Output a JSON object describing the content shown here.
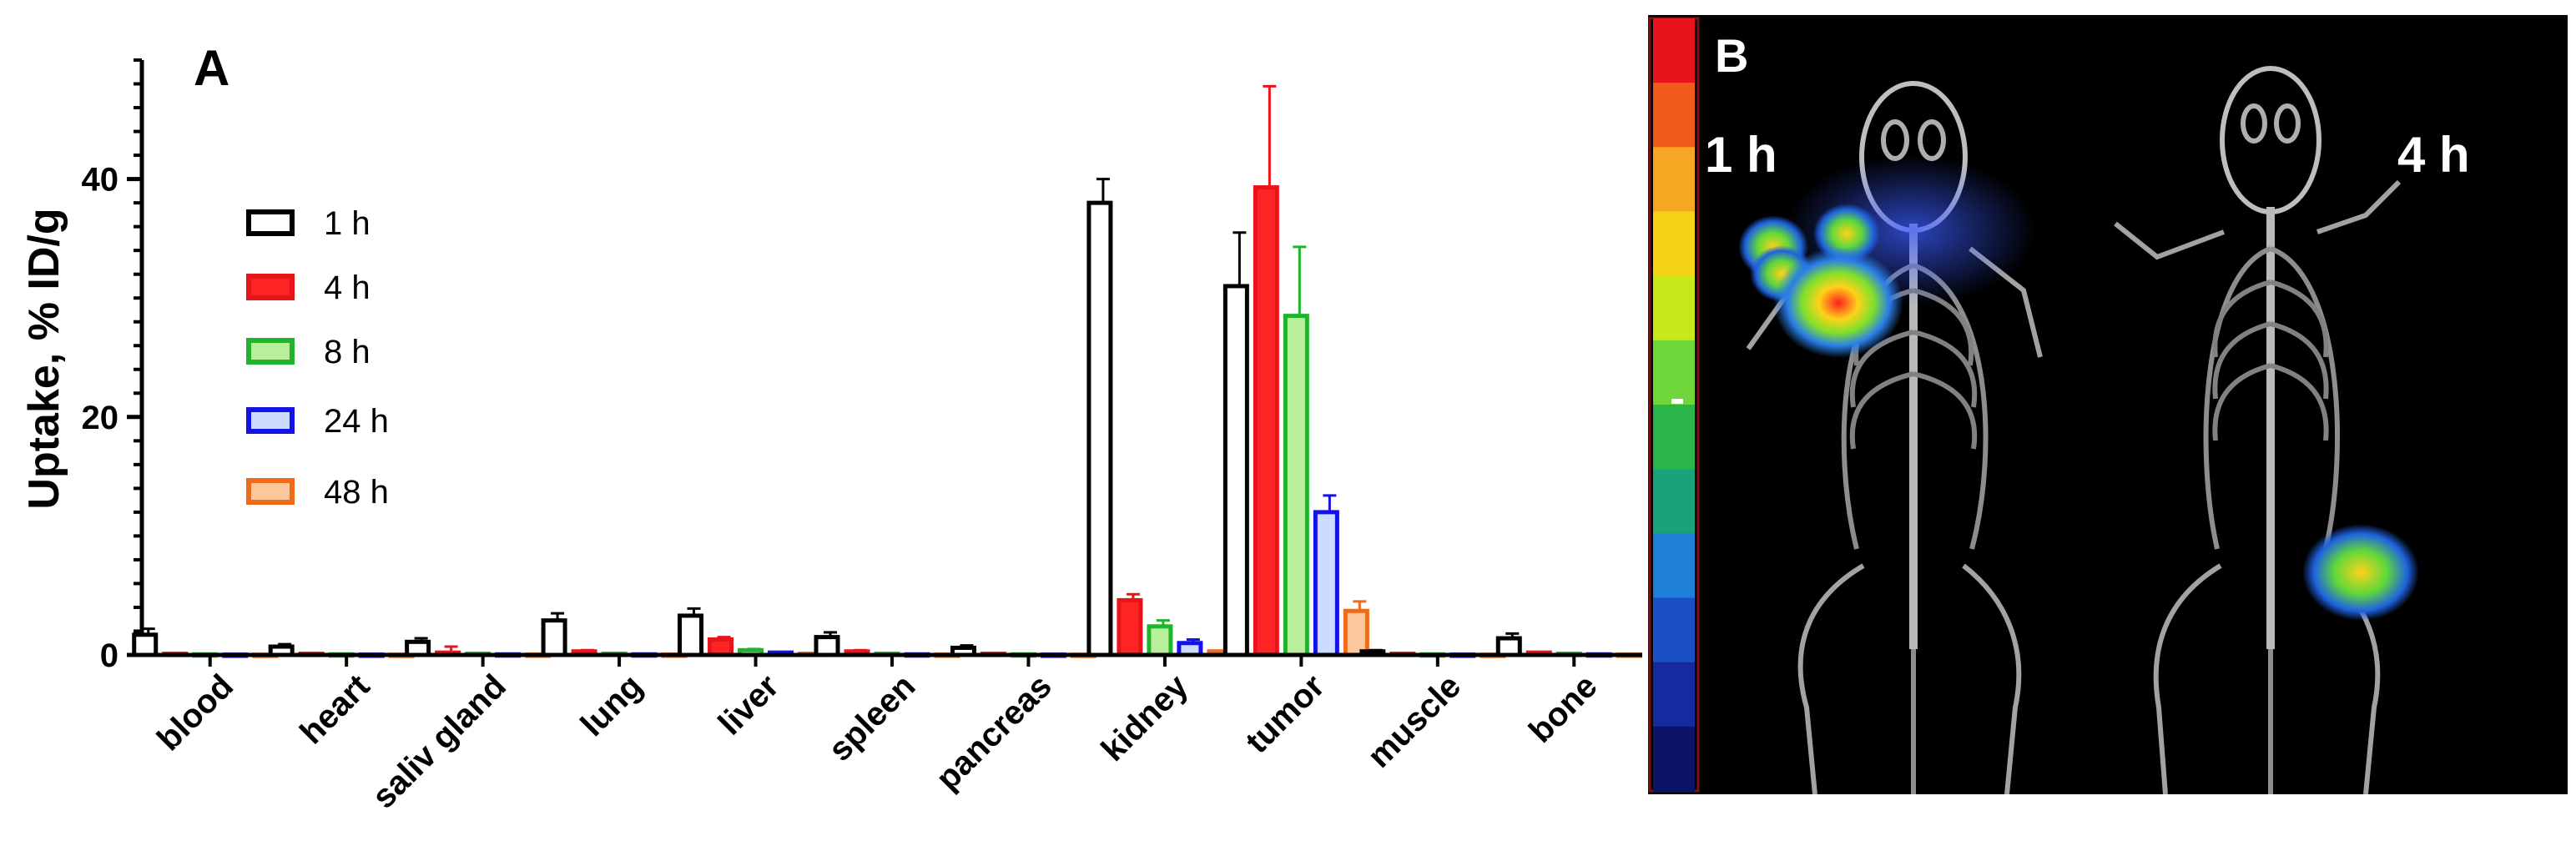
{
  "chart_data": {
    "type": "bar",
    "panel_label": "A",
    "ylabel": "Uptake, % ID/g",
    "ylim": [
      0,
      50
    ],
    "yticks": [
      0,
      20,
      40
    ],
    "categories": [
      "blood",
      "heart",
      "saliv gland",
      "lung",
      "liver",
      "spleen",
      "pancreas",
      "kidney",
      "tumor",
      "muscle",
      "bone"
    ],
    "series": [
      {
        "name": "1 h",
        "edge": "#000000",
        "fill": "#ffffff",
        "values": [
          1.7,
          0.7,
          1.1,
          2.9,
          3.3,
          1.5,
          0.6,
          38.0,
          31.0,
          0.3,
          1.4
        ],
        "errors": [
          0.5,
          0.2,
          0.3,
          0.6,
          0.6,
          0.4,
          0.2,
          2.0,
          4.5,
          0.1,
          0.4
        ]
      },
      {
        "name": "4 h",
        "edge": "#e8141b",
        "fill": "#ff2424",
        "values": [
          0.1,
          0.1,
          0.2,
          0.3,
          1.3,
          0.3,
          0.1,
          4.6,
          39.3,
          0.1,
          0.2
        ],
        "errors": [
          0.05,
          0.05,
          0.5,
          0.1,
          0.2,
          0.1,
          0.05,
          0.5,
          8.5,
          0.05,
          0.05
        ]
      },
      {
        "name": "8 h",
        "edge": "#22b32d",
        "fill": "#b9ef9b",
        "values": [
          0.05,
          0.05,
          0.1,
          0.1,
          0.4,
          0.1,
          0.05,
          2.4,
          28.5,
          0.05,
          0.1
        ],
        "errors": [
          0.02,
          0.02,
          0.05,
          0.05,
          0.1,
          0.05,
          0.02,
          0.5,
          5.8,
          0.02,
          0.05
        ]
      },
      {
        "name": "24 h",
        "edge": "#1313e8",
        "fill": "#ccdcff",
        "values": [
          0.03,
          0.03,
          0.05,
          0.05,
          0.2,
          0.05,
          0.03,
          1.0,
          12.0,
          0.03,
          0.05
        ],
        "errors": [
          0.01,
          0.01,
          0.02,
          0.02,
          0.05,
          0.02,
          0.01,
          0.3,
          1.4,
          0.01,
          0.02
        ]
      },
      {
        "name": "48 h",
        "edge": "#ef6b1c",
        "fill": "#fcc79a",
        "values": [
          0.02,
          0.02,
          0.03,
          0.03,
          0.1,
          0.03,
          0.02,
          0.3,
          3.7,
          0.02,
          0.03
        ],
        "errors": [
          0.01,
          0.01,
          0.01,
          0.01,
          0.02,
          0.01,
          0.01,
          0.05,
          0.8,
          0.01,
          0.01
        ]
      }
    ],
    "legend_position": "upper-left inside plot",
    "grid": false
  },
  "image_panel": {
    "panel_label": "B",
    "labels": [
      "1 h",
      "4 h"
    ],
    "colorbar": [
      "#e8141b",
      "#f05a1b",
      "#f5a623",
      "#f5d316",
      "#c9e81a",
      "#6fd63a",
      "#29b54a",
      "#1aa37a",
      "#1f7fd6",
      "#1b4fc4",
      "#142a9e",
      "#0b1466"
    ]
  }
}
